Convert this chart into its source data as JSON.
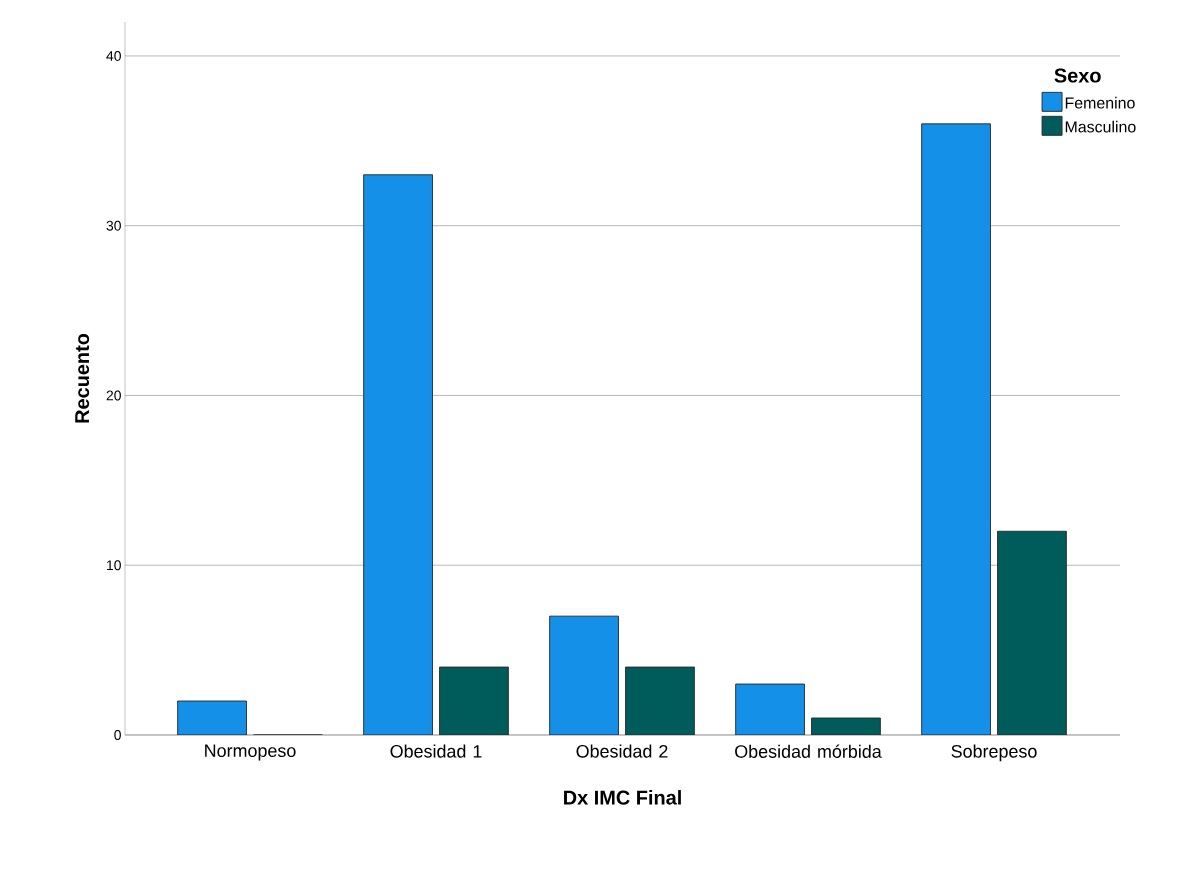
{
  "chart_data": {
    "type": "bar",
    "xlabel": "Dx IMC Final",
    "ylabel": "Recuento",
    "legend_title": "Sexo",
    "categories": [
      "Normopeso",
      "Obesidad 1",
      "Obesidad 2",
      "Obesidad mórbida",
      "Sobrepeso"
    ],
    "series": [
      {
        "name": "Femenino",
        "color": "#1490e8",
        "values": [
          2,
          33,
          7,
          3,
          36
        ]
      },
      {
        "name": "Masculino",
        "color": "#005c5a",
        "values": [
          0,
          4,
          4,
          1,
          12
        ]
      }
    ],
    "ylim": [
      0,
      42
    ],
    "yticks": [
      0,
      10,
      20,
      30,
      40
    ],
    "grid": "y",
    "legend": "top right"
  }
}
